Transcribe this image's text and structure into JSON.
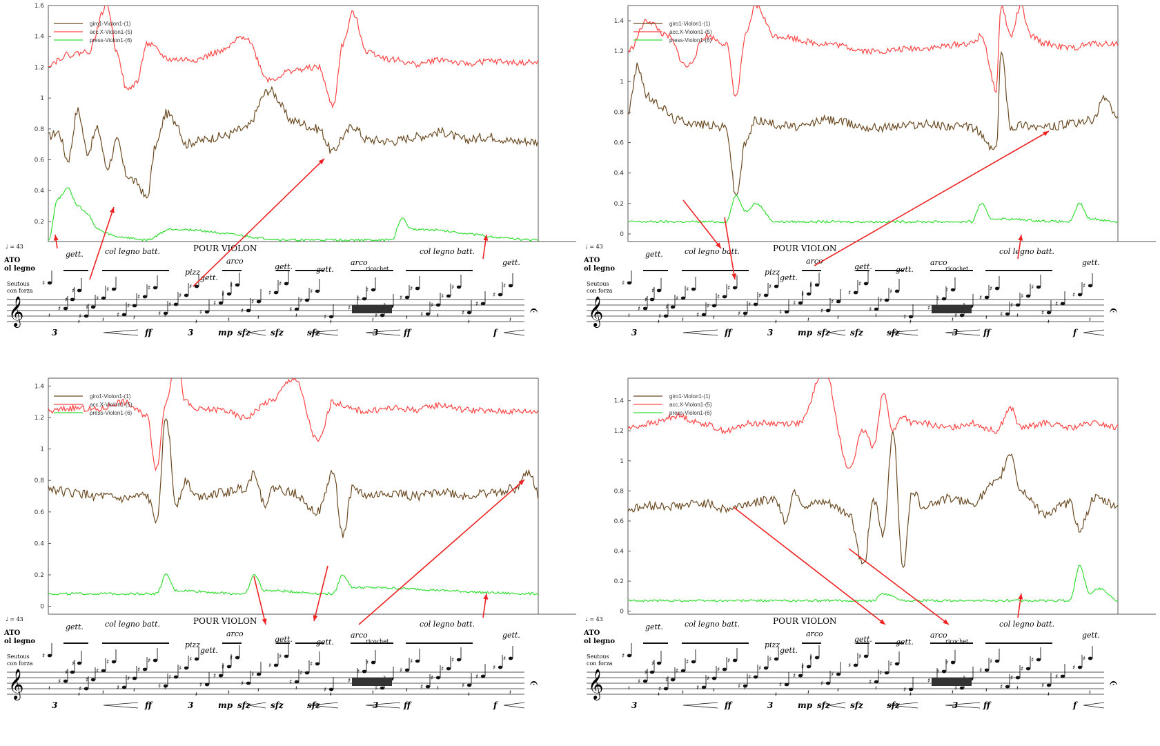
{
  "legend": {
    "gyro": "giro1-Violon1-(1)",
    "acc": "acc.X-Violon1-(5)",
    "press": "press-Violon1-(6)"
  },
  "colors": {
    "gyro": "#6b4a22",
    "acc": "#ff4444",
    "press": "#33dd33",
    "arrow": "#ee2222",
    "axis": "#555555"
  },
  "score": {
    "title": "POUR VIOLON",
    "tempo": "♩ = 43",
    "technique_top": "ATO",
    "technique_top2": "ol legno",
    "technique_small1": "Seutous",
    "technique_small2": "con forza",
    "gett": "gett.",
    "col_legno": "col legno batt.",
    "pizz": "pizz",
    "arco": "arco",
    "ricochet": "ricochet",
    "dyn_ff": "ff",
    "dyn_mp": "mp",
    "dyn_sfz": "sfz",
    "dyn_f": "f",
    "three": "3"
  },
  "chart_data": [
    {
      "type": "line",
      "title": "",
      "xlabel": "",
      "ylabel": "",
      "ylim": [
        0.07,
        1.6
      ],
      "yticks": [
        "0.2",
        "0.4",
        "0.6",
        "0.8",
        "1",
        "1.2",
        "1.4",
        "1.6"
      ],
      "ytick_values": [
        0.2,
        0.4,
        0.6,
        0.8,
        1.0,
        1.2,
        1.4,
        1.6
      ],
      "legend_position": "top-left",
      "series": [
        {
          "name": "giro1-Violon1-(1)",
          "color": "#6b4a22",
          "x": [
            0,
            0.02,
            0.04,
            0.06,
            0.08,
            0.1,
            0.12,
            0.14,
            0.16,
            0.18,
            0.2,
            0.22,
            0.24,
            0.26,
            0.28,
            0.3,
            0.35,
            0.4,
            0.45,
            0.5,
            0.55,
            0.58,
            0.6,
            0.62,
            0.65,
            0.7,
            0.75,
            0.8,
            0.85,
            0.9,
            0.95,
            1.0
          ],
          "y": [
            0.75,
            0.78,
            0.6,
            0.92,
            0.65,
            0.8,
            0.55,
            0.72,
            0.5,
            0.45,
            0.35,
            0.7,
            0.9,
            0.85,
            0.7,
            0.72,
            0.75,
            0.8,
            1.05,
            0.85,
            0.8,
            0.65,
            0.75,
            0.82,
            0.73,
            0.72,
            0.75,
            0.78,
            0.73,
            0.75,
            0.72,
            0.72
          ]
        },
        {
          "name": "acc.X-Violon1-(5)",
          "color": "#ff4444",
          "x": [
            0,
            0.04,
            0.08,
            0.12,
            0.14,
            0.16,
            0.18,
            0.2,
            0.25,
            0.3,
            0.35,
            0.4,
            0.45,
            0.5,
            0.55,
            0.58,
            0.6,
            0.62,
            0.65,
            0.7,
            0.75,
            0.8,
            0.85,
            0.9,
            0.95,
            1.0
          ],
          "y": [
            1.22,
            1.28,
            1.3,
            1.6,
            1.3,
            1.05,
            1.1,
            1.35,
            1.25,
            1.25,
            1.3,
            1.4,
            1.12,
            1.18,
            1.2,
            0.95,
            1.35,
            1.55,
            1.3,
            1.25,
            1.22,
            1.25,
            1.22,
            1.24,
            1.23,
            1.23
          ]
        },
        {
          "name": "press-Violon1-(6)",
          "color": "#33dd33",
          "x": [
            0,
            0.02,
            0.04,
            0.06,
            0.08,
            0.1,
            0.12,
            0.14,
            0.2,
            0.25,
            0.5,
            0.7,
            0.72,
            0.74,
            1.0
          ],
          "y": [
            0.08,
            0.35,
            0.42,
            0.3,
            0.25,
            0.15,
            0.12,
            0.1,
            0.08,
            0.15,
            0.08,
            0.08,
            0.22,
            0.15,
            0.08
          ]
        }
      ]
    },
    {
      "type": "line",
      "title": "",
      "xlabel": "",
      "ylabel": "",
      "ylim": [
        -0.05,
        1.5
      ],
      "yticks": [
        "0",
        "0.2",
        "0.4",
        "0.6",
        "0.8",
        "1",
        "1.2",
        "1.4"
      ],
      "ytick_values": [
        0,
        0.2,
        0.4,
        0.6,
        0.8,
        1.0,
        1.2,
        1.4
      ],
      "legend_position": "top-left",
      "series": [
        {
          "name": "giro1-Violon1-(1)",
          "color": "#6b4a22",
          "x": [
            0,
            0.02,
            0.04,
            0.06,
            0.1,
            0.15,
            0.2,
            0.22,
            0.24,
            0.26,
            0.3,
            0.35,
            0.4,
            0.5,
            0.6,
            0.7,
            0.75,
            0.76,
            0.78,
            0.8,
            0.85,
            0.9,
            0.95,
            0.97,
            1.0
          ],
          "y": [
            0.8,
            1.1,
            0.9,
            0.85,
            0.75,
            0.72,
            0.7,
            0.25,
            0.6,
            0.75,
            0.72,
            0.7,
            0.75,
            0.7,
            0.72,
            0.7,
            0.55,
            1.2,
            0.7,
            0.72,
            0.7,
            0.72,
            0.75,
            0.9,
            0.75
          ]
        },
        {
          "name": "acc.X-Violon1-(5)",
          "color": "#ff4444",
          "x": [
            0,
            0.04,
            0.08,
            0.12,
            0.16,
            0.2,
            0.22,
            0.24,
            0.26,
            0.3,
            0.4,
            0.5,
            0.6,
            0.7,
            0.72,
            0.75,
            0.76,
            0.78,
            0.8,
            0.82,
            0.85,
            0.9,
            0.95,
            1.0
          ],
          "y": [
            1.2,
            1.4,
            1.3,
            1.1,
            1.3,
            1.25,
            0.9,
            1.3,
            1.5,
            1.3,
            1.25,
            1.2,
            1.22,
            1.25,
            1.3,
            0.95,
            1.5,
            1.3,
            1.5,
            1.3,
            1.25,
            1.22,
            1.25,
            1.25
          ]
        },
        {
          "name": "press-Violon1-(6)",
          "color": "#33dd33",
          "x": [
            0,
            0.2,
            0.22,
            0.24,
            0.26,
            0.3,
            0.7,
            0.72,
            0.74,
            0.9,
            0.92,
            0.94,
            1.0
          ],
          "y": [
            0.08,
            0.08,
            0.25,
            0.15,
            0.2,
            0.08,
            0.08,
            0.2,
            0.1,
            0.08,
            0.2,
            0.1,
            0.08
          ]
        }
      ]
    },
    {
      "type": "line",
      "title": "",
      "xlabel": "",
      "ylabel": "",
      "ylim": [
        -0.05,
        1.45
      ],
      "yticks": [
        "0",
        "0.2",
        "0.4",
        "0.6",
        "0.8",
        "1",
        "1.2",
        "1.4"
      ],
      "ytick_values": [
        0,
        0.2,
        0.4,
        0.6,
        0.8,
        1.0,
        1.2,
        1.4
      ],
      "legend_position": "top-left",
      "series": [
        {
          "name": "giro1-Violon1-(1)",
          "color": "#6b4a22",
          "x": [
            0,
            0.05,
            0.1,
            0.15,
            0.2,
            0.22,
            0.24,
            0.26,
            0.28,
            0.3,
            0.35,
            0.4,
            0.42,
            0.44,
            0.46,
            0.5,
            0.55,
            0.58,
            0.6,
            0.62,
            0.65,
            0.7,
            0.75,
            0.8,
            0.85,
            0.9,
            0.95,
            0.98,
            1.0
          ],
          "y": [
            0.75,
            0.72,
            0.7,
            0.68,
            0.7,
            0.55,
            1.2,
            0.65,
            0.8,
            0.7,
            0.72,
            0.75,
            0.85,
            0.65,
            0.75,
            0.72,
            0.6,
            0.85,
            0.45,
            0.75,
            0.7,
            0.72,
            0.7,
            0.73,
            0.7,
            0.72,
            0.75,
            0.85,
            0.7
          ]
        },
        {
          "name": "acc.X-Violon1-(5)",
          "color": "#ff4444",
          "x": [
            0,
            0.05,
            0.1,
            0.15,
            0.2,
            0.22,
            0.24,
            0.26,
            0.28,
            0.3,
            0.35,
            0.4,
            0.45,
            0.5,
            0.55,
            0.58,
            0.6,
            0.62,
            0.65,
            0.7,
            0.75,
            0.8,
            0.85,
            0.9,
            0.95,
            1.0
          ],
          "y": [
            1.24,
            1.26,
            1.25,
            1.3,
            1.22,
            0.88,
            1.3,
            1.6,
            1.3,
            1.25,
            1.25,
            1.2,
            1.3,
            1.45,
            1.05,
            1.3,
            1.28,
            1.25,
            1.24,
            1.26,
            1.25,
            1.28,
            1.25,
            1.24,
            1.24,
            1.24
          ]
        },
        {
          "name": "press-Violon1-(6)",
          "color": "#33dd33",
          "x": [
            0,
            0.22,
            0.24,
            0.26,
            0.4,
            0.42,
            0.44,
            0.58,
            0.6,
            0.62,
            1.0
          ],
          "y": [
            0.08,
            0.08,
            0.2,
            0.1,
            0.08,
            0.2,
            0.1,
            0.08,
            0.2,
            0.12,
            0.08
          ]
        }
      ]
    },
    {
      "type": "line",
      "title": "",
      "xlabel": "",
      "ylabel": "",
      "ylim": [
        -0.02,
        1.55
      ],
      "yticks": [
        "0",
        "0.2",
        "0.4",
        "0.6",
        "0.8",
        "1",
        "1.2",
        "1.4"
      ],
      "ytick_values": [
        0,
        0.2,
        0.4,
        0.6,
        0.8,
        1.0,
        1.2,
        1.4
      ],
      "legend_position": "top-left",
      "series": [
        {
          "name": "giro1-Violon1-(1)",
          "color": "#6b4a22",
          "x": [
            0,
            0.05,
            0.1,
            0.15,
            0.2,
            0.25,
            0.3,
            0.32,
            0.34,
            0.36,
            0.4,
            0.45,
            0.48,
            0.5,
            0.52,
            0.54,
            0.56,
            0.58,
            0.6,
            0.62,
            0.65,
            0.7,
            0.75,
            0.78,
            0.8,
            0.85,
            0.9,
            0.92,
            0.95,
            1.0
          ],
          "y": [
            0.68,
            0.7,
            0.7,
            0.72,
            0.68,
            0.72,
            0.75,
            0.6,
            0.8,
            0.7,
            0.72,
            0.65,
            0.3,
            0.75,
            0.5,
            1.2,
            0.3,
            0.8,
            0.7,
            0.72,
            0.75,
            0.72,
            0.85,
            1.05,
            0.8,
            0.65,
            0.72,
            0.55,
            0.75,
            0.7
          ]
        },
        {
          "name": "acc.X-Violon1-(5)",
          "color": "#ff4444",
          "x": [
            0,
            0.05,
            0.1,
            0.15,
            0.2,
            0.25,
            0.3,
            0.35,
            0.4,
            0.45,
            0.48,
            0.5,
            0.52,
            0.54,
            0.56,
            0.58,
            0.6,
            0.65,
            0.7,
            0.75,
            0.78,
            0.8,
            0.85,
            0.9,
            0.95,
            1.0
          ],
          "y": [
            1.22,
            1.25,
            1.3,
            1.25,
            1.2,
            1.25,
            1.25,
            1.25,
            1.6,
            0.95,
            1.2,
            1.1,
            1.45,
            1.2,
            1.3,
            1.25,
            1.25,
            1.22,
            1.25,
            1.2,
            1.35,
            1.22,
            1.25,
            1.22,
            1.25,
            1.22
          ]
        },
        {
          "name": "press-Violon1-(6)",
          "color": "#33dd33",
          "x": [
            0,
            0.5,
            0.52,
            0.54,
            0.56,
            0.9,
            0.92,
            0.94,
            0.96,
            1.0
          ],
          "y": [
            0.07,
            0.07,
            0.12,
            0.1,
            0.07,
            0.07,
            0.3,
            0.12,
            0.15,
            0.07
          ]
        }
      ]
    }
  ]
}
